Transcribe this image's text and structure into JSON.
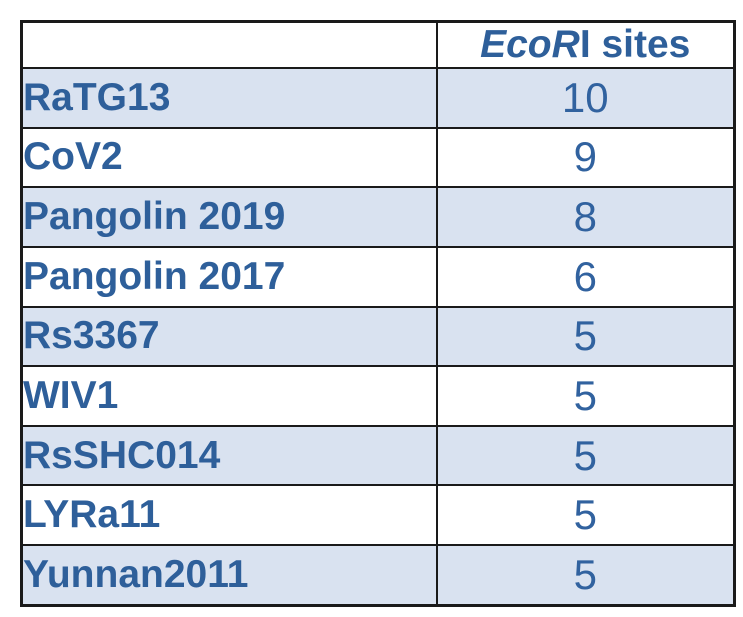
{
  "table": {
    "header": {
      "label_col": "",
      "value_col_italic": "EcoR",
      "value_col_rest": "I sites"
    },
    "rows": [
      {
        "label": "RaTG13",
        "value": "10",
        "shaded": true
      },
      {
        "label": "CoV2",
        "value": "9",
        "shaded": false
      },
      {
        "label": "Pangolin 2019",
        "value": "8",
        "shaded": true
      },
      {
        "label": "Pangolin 2017",
        "value": "6",
        "shaded": false
      },
      {
        "label": "Rs3367",
        "value": "5",
        "shaded": true
      },
      {
        "label": "WIV1",
        "value": "5",
        "shaded": false
      },
      {
        "label": "RsSHC014",
        "value": "5",
        "shaded": true
      },
      {
        "label": "LYRa11",
        "value": "5",
        "shaded": false
      },
      {
        "label": "Yunnan2011",
        "value": "5",
        "shaded": true
      }
    ]
  },
  "chart_data": {
    "type": "table",
    "title": "",
    "columns": [
      "",
      "EcoRI sites"
    ],
    "categories": [
      "RaTG13",
      "CoV2",
      "Pangolin 2019",
      "Pangolin 2017",
      "Rs3367",
      "WIV1",
      "RsSHC014",
      "LYRa11",
      "Yunnan2011"
    ],
    "values": [
      10,
      9,
      8,
      6,
      5,
      5,
      5,
      5,
      5
    ]
  },
  "colors": {
    "text_blue": "#2E5F9A",
    "num_blue": "#31629F",
    "row_shade": "#D9E2F0",
    "border": "#1A1A1A",
    "background": "#FFFFFF"
  }
}
